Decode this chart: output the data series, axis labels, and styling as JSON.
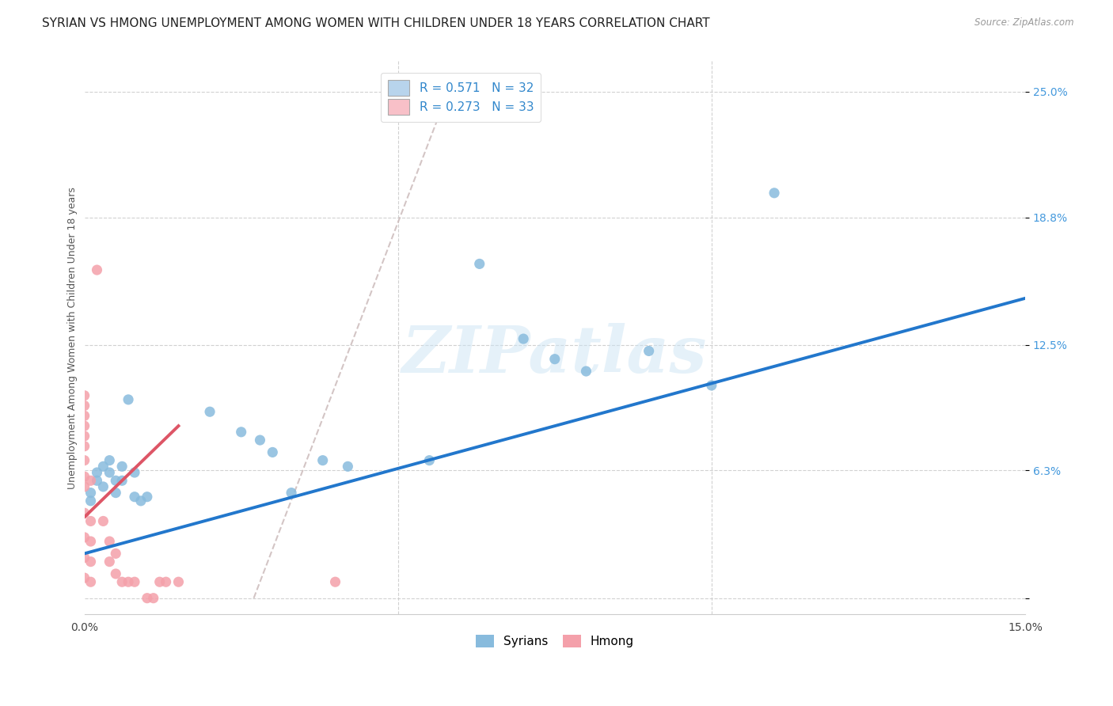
{
  "title": "SYRIAN VS HMONG UNEMPLOYMENT AMONG WOMEN WITH CHILDREN UNDER 18 YEARS CORRELATION CHART",
  "source": "Source: ZipAtlas.com",
  "ylabel": "Unemployment Among Women with Children Under 18 years",
  "xlim": [
    0.0,
    0.15
  ],
  "ylim": [
    -0.008,
    0.265
  ],
  "xtick_positions": [
    0.0,
    0.05,
    0.1,
    0.15
  ],
  "xticklabels": [
    "0.0%",
    "",
    "",
    "15.0%"
  ],
  "ytick_positions": [
    0.0,
    0.063,
    0.125,
    0.188,
    0.25
  ],
  "yticklabels": [
    "",
    "6.3%",
    "12.5%",
    "18.8%",
    "25.0%"
  ],
  "watermark_text": "ZIPatlas",
  "legend_R_entries": [
    {
      "label_r": "R = 0.571",
      "label_n": "N = 32",
      "color": "#b8d4ec"
    },
    {
      "label_r": "R = 0.273",
      "label_n": "N = 33",
      "color": "#f8c0c8"
    }
  ],
  "legend_labels_bottom": [
    "Syrians",
    "Hmong"
  ],
  "syrian_color": "#88bbdd",
  "hmong_color": "#f4a0aa",
  "syrian_line_color": "#2277cc",
  "hmong_line_color": "#dd5566",
  "diag_color": "#ccbbbb",
  "syrian_points": [
    [
      0.001,
      0.052
    ],
    [
      0.001,
      0.048
    ],
    [
      0.002,
      0.062
    ],
    [
      0.002,
      0.058
    ],
    [
      0.003,
      0.065
    ],
    [
      0.003,
      0.055
    ],
    [
      0.004,
      0.068
    ],
    [
      0.004,
      0.062
    ],
    [
      0.005,
      0.058
    ],
    [
      0.005,
      0.052
    ],
    [
      0.006,
      0.065
    ],
    [
      0.006,
      0.058
    ],
    [
      0.007,
      0.098
    ],
    [
      0.008,
      0.062
    ],
    [
      0.008,
      0.05
    ],
    [
      0.009,
      0.048
    ],
    [
      0.01,
      0.05
    ],
    [
      0.02,
      0.092
    ],
    [
      0.025,
      0.082
    ],
    [
      0.028,
      0.078
    ],
    [
      0.03,
      0.072
    ],
    [
      0.033,
      0.052
    ],
    [
      0.038,
      0.068
    ],
    [
      0.042,
      0.065
    ],
    [
      0.055,
      0.068
    ],
    [
      0.063,
      0.165
    ],
    [
      0.07,
      0.128
    ],
    [
      0.075,
      0.118
    ],
    [
      0.08,
      0.112
    ],
    [
      0.09,
      0.122
    ],
    [
      0.1,
      0.105
    ],
    [
      0.11,
      0.2
    ]
  ],
  "hmong_points": [
    [
      0.0,
      0.01
    ],
    [
      0.0,
      0.055
    ],
    [
      0.0,
      0.06
    ],
    [
      0.0,
      0.068
    ],
    [
      0.0,
      0.075
    ],
    [
      0.0,
      0.08
    ],
    [
      0.0,
      0.085
    ],
    [
      0.0,
      0.09
    ],
    [
      0.0,
      0.095
    ],
    [
      0.0,
      0.1
    ],
    [
      0.0,
      0.042
    ],
    [
      0.0,
      0.03
    ],
    [
      0.0,
      0.02
    ],
    [
      0.001,
      0.058
    ],
    [
      0.001,
      0.038
    ],
    [
      0.001,
      0.028
    ],
    [
      0.001,
      0.018
    ],
    [
      0.001,
      0.008
    ],
    [
      0.002,
      0.162
    ],
    [
      0.003,
      0.038
    ],
    [
      0.004,
      0.028
    ],
    [
      0.004,
      0.018
    ],
    [
      0.005,
      0.022
    ],
    [
      0.005,
      0.012
    ],
    [
      0.006,
      0.008
    ],
    [
      0.007,
      0.008
    ],
    [
      0.008,
      0.008
    ],
    [
      0.01,
      0.0
    ],
    [
      0.011,
      0.0
    ],
    [
      0.012,
      0.008
    ],
    [
      0.013,
      0.008
    ],
    [
      0.015,
      0.008
    ],
    [
      0.04,
      0.008
    ]
  ],
  "syrian_line_x": [
    0.0,
    0.15
  ],
  "syrian_line_y": [
    0.022,
    0.148
  ],
  "hmong_line_x": [
    0.0,
    0.015
  ],
  "hmong_line_y": [
    0.04,
    0.085
  ],
  "diag_line_x": [
    0.027,
    0.058
  ],
  "diag_line_y": [
    0.0,
    0.25
  ],
  "background_color": "#ffffff",
  "grid_color": "#cccccc",
  "title_fontsize": 11,
  "axis_label_fontsize": 9,
  "tick_fontsize": 10,
  "scatter_size": 90
}
